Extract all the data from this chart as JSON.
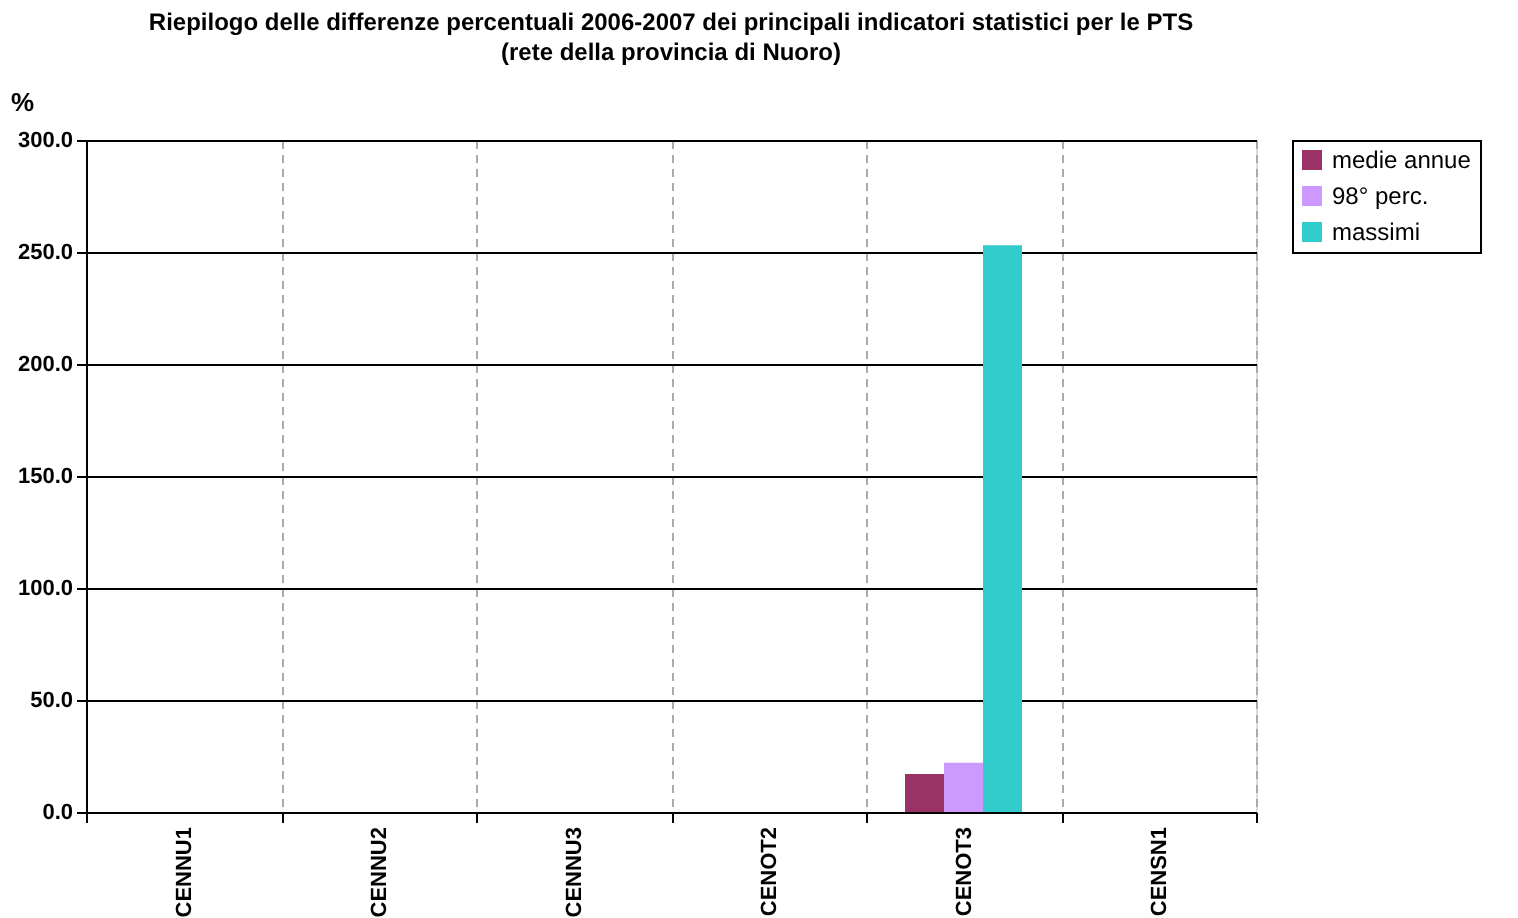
{
  "chart_data": {
    "type": "bar",
    "title": "Riepilogo delle differenze percentuali 2006-2007 dei principali indicatori statistici per le PTS",
    "subtitle": "(rete della provincia di Nuoro)",
    "ylabel": "%",
    "categories": [
      "CENNU1",
      "CENNU2",
      "CENNU3",
      "CENOT2",
      "CENOT3",
      "CENSN1"
    ],
    "series": [
      {
        "name": "medie annue",
        "color": "#993366",
        "values": [
          null,
          null,
          null,
          null,
          17,
          null
        ]
      },
      {
        "name": "98° perc.",
        "color": "#cc99ff",
        "values": [
          null,
          null,
          null,
          null,
          22,
          null
        ]
      },
      {
        "name": "massimi",
        "color": "#33cccc",
        "values": [
          null,
          null,
          null,
          null,
          253,
          null
        ]
      }
    ],
    "ylim": [
      0,
      300
    ],
    "yticks": [
      {
        "value": 0,
        "label": "0.0"
      },
      {
        "value": 50,
        "label": "50.0"
      },
      {
        "value": 100,
        "label": "100.0"
      },
      {
        "value": 150,
        "label": "150.0"
      },
      {
        "value": 200,
        "label": "200.0"
      },
      {
        "value": 250,
        "label": "250.0"
      },
      {
        "value": 300,
        "label": "300.0"
      }
    ],
    "grid": true,
    "legend": "top right"
  }
}
